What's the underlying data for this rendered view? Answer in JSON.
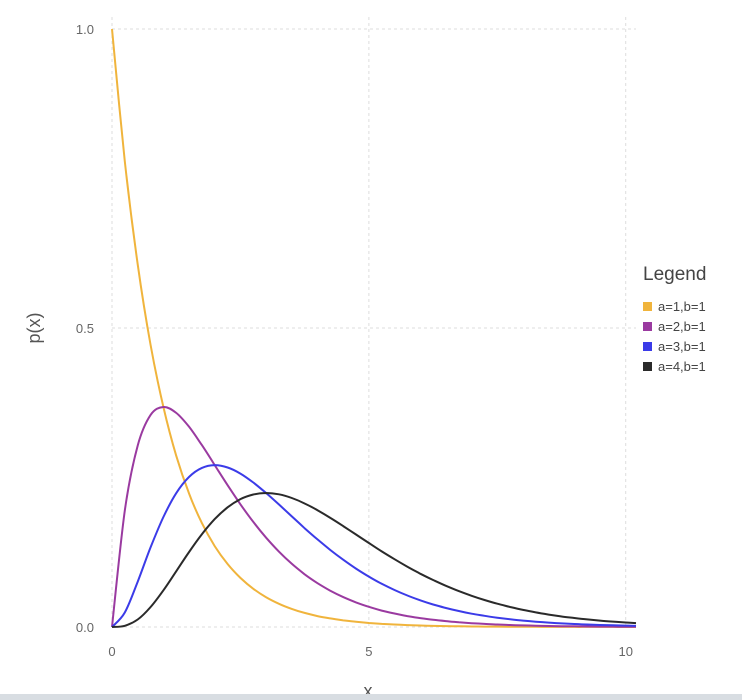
{
  "chart_data": {
    "type": "line",
    "title": "",
    "xlabel": "x",
    "ylabel": "p(x)",
    "xlim": [
      0,
      10.2
    ],
    "ylim": [
      0,
      1.0
    ],
    "xticks": [
      0,
      5,
      10
    ],
    "xtick_labels": [
      "0",
      "5",
      "10"
    ],
    "yticks": [
      0.0,
      0.5,
      1.0
    ],
    "ytick_labels": [
      "0.0",
      "0.5",
      "1.0"
    ],
    "grid": true,
    "legend": {
      "title": "Legend",
      "placement": "right"
    },
    "x": [
      0,
      0.25,
      0.5,
      0.75,
      1,
      1.25,
      1.5,
      1.75,
      2,
      2.25,
      2.5,
      2.75,
      3,
      3.25,
      3.5,
      3.75,
      4,
      4.25,
      4.5,
      4.75,
      5,
      5.25,
      5.5,
      5.75,
      6,
      6.25,
      6.5,
      6.75,
      7,
      7.25,
      7.5,
      7.75,
      8,
      8.25,
      8.5,
      8.75,
      9,
      9.25,
      9.5,
      9.75,
      10,
      10.2
    ],
    "series": [
      {
        "name": "a=1,b=1",
        "color": "#f0b43c",
        "values": [
          1.0,
          0.7788,
          0.6065,
          0.4724,
          0.3679,
          0.2865,
          0.2231,
          0.1738,
          0.1353,
          0.1054,
          0.0821,
          0.0639,
          0.0498,
          0.0388,
          0.0302,
          0.0235,
          0.0183,
          0.0143,
          0.0111,
          0.0087,
          0.0067,
          0.0052,
          0.0041,
          0.0032,
          0.0025,
          0.0019,
          0.0015,
          0.0012,
          0.0009,
          0.0007,
          0.0006,
          0.0004,
          0.0003,
          0.0003,
          0.0002,
          0.0002,
          0.0001,
          0.0001,
          0.0001,
          0.0001,
          0.0,
          0.0
        ]
      },
      {
        "name": "a=2,b=1",
        "color": "#9a3aa0",
        "values": [
          0.0,
          0.1947,
          0.3033,
          0.3543,
          0.3679,
          0.3581,
          0.3347,
          0.3041,
          0.2707,
          0.2371,
          0.2052,
          0.1757,
          0.1494,
          0.126,
          0.1057,
          0.0882,
          0.0733,
          0.0606,
          0.05,
          0.0411,
          0.0337,
          0.0275,
          0.0225,
          0.0183,
          0.0149,
          0.0121,
          0.0098,
          0.0079,
          0.0064,
          0.0052,
          0.0041,
          0.0033,
          0.0027,
          0.0021,
          0.0017,
          0.0014,
          0.0011,
          0.0009,
          0.0007,
          0.0006,
          0.0005,
          0.0004
        ]
      },
      {
        "name": "a=3,b=1",
        "color": "#3b3be8",
        "values": [
          0.0,
          0.0243,
          0.0758,
          0.1329,
          0.1839,
          0.2238,
          0.251,
          0.2661,
          0.2707,
          0.2668,
          0.2565,
          0.2416,
          0.224,
          0.2048,
          0.185,
          0.1653,
          0.1465,
          0.1288,
          0.1125,
          0.0977,
          0.0842,
          0.0723,
          0.0618,
          0.0526,
          0.0446,
          0.0377,
          0.0318,
          0.0267,
          0.0223,
          0.0187,
          0.0156,
          0.013,
          0.0107,
          0.0089,
          0.0073,
          0.006,
          0.005,
          0.0041,
          0.0034,
          0.0028,
          0.0023,
          0.0019
        ]
      },
      {
        "name": "a=4,b=1",
        "color": "#2a2a2a",
        "values": [
          0.0,
          0.002,
          0.0126,
          0.0332,
          0.0613,
          0.0932,
          0.1255,
          0.1552,
          0.1804,
          0.2001,
          0.2138,
          0.2215,
          0.224,
          0.2219,
          0.2158,
          0.2066,
          0.1954,
          0.1825,
          0.1687,
          0.1546,
          0.1404,
          0.1265,
          0.1133,
          0.1008,
          0.0892,
          0.0786,
          0.0689,
          0.0601,
          0.0521,
          0.0451,
          0.0389,
          0.0335,
          0.0286,
          0.0244,
          0.0208,
          0.0176,
          0.015,
          0.0127,
          0.0107,
          0.009,
          0.0076,
          0.0066
        ]
      }
    ]
  }
}
